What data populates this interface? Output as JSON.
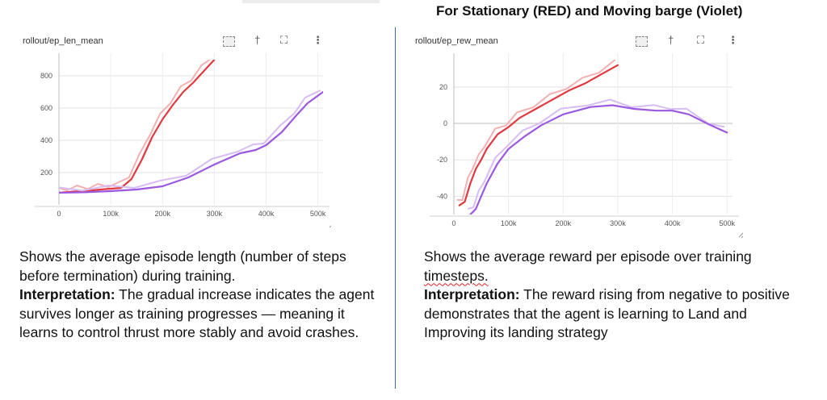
{
  "heading": "For Stationary (RED) and Moving barge (Violet)",
  "icons": {
    "fit": "fit-domain-icon",
    "pin": "pin-icon",
    "expand": "fullscreen-icon",
    "more": "more-vert-icon"
  },
  "colors": {
    "red": "#e0393f",
    "red_light": "#f2a6a6",
    "violet": "#9b59e0",
    "violet_light": "#ddc4f3"
  },
  "left_panel": {
    "title": "rollout/ep_len_mean",
    "description": "Shows the average episode length (number of steps before termination) during training.",
    "interp_label": "Interpretation:",
    "interp_text": " The gradual increase indicates the agent survives longer as training progresses — meaning it learns to control thrust more stably and avoid crashes."
  },
  "right_panel": {
    "title": "rollout/ep_rew_mean",
    "description_1": "Shows the average reward per episode over training ",
    "description_2": "timesteps.",
    "interp_label": "Interpretation:",
    "interp_text": " The reward rising from negative to positive demonstrates that the agent is learning to Land and Improving its landing strategy"
  },
  "chart_data": [
    {
      "type": "line",
      "title": "rollout/ep_len_mean",
      "xlim": [
        0,
        510000
      ],
      "ylim": [
        0,
        900
      ],
      "xticks": [
        0,
        100000,
        200000,
        300000,
        400000,
        500000
      ],
      "xtick_labels": [
        "0",
        "100k",
        "200k",
        "300k",
        "400k",
        "500k"
      ],
      "yticks": [
        200,
        400,
        600,
        800
      ],
      "ytick_labels": [
        "200",
        "400",
        "600",
        "800"
      ],
      "grid": true,
      "series": [
        {
          "color": "#e0393f",
          "x": [
            0,
            20000,
            40000,
            60000,
            80000,
            100000,
            120000,
            140000,
            160000,
            180000,
            200000,
            220000,
            240000,
            260000,
            280000,
            300000
          ],
          "y": [
            75,
            80,
            85,
            88,
            95,
            100,
            105,
            160,
            280,
            420,
            530,
            620,
            700,
            760,
            830,
            900
          ]
        },
        {
          "color": "#9b59e0",
          "x": [
            0,
            50000,
            100000,
            150000,
            200000,
            250000,
            300000,
            350000,
            380000,
            400000,
            430000,
            460000,
            480000,
            510000
          ],
          "y": [
            75,
            78,
            85,
            95,
            115,
            170,
            250,
            320,
            340,
            370,
            450,
            560,
            630,
            700
          ]
        }
      ]
    },
    {
      "type": "line",
      "title": "rollout/ep_rew_mean",
      "xlim": [
        0,
        510000
      ],
      "ylim": [
        -50,
        35
      ],
      "xticks": [
        0,
        100000,
        200000,
        300000,
        400000,
        500000
      ],
      "xtick_labels": [
        "0",
        "100k",
        "200k",
        "300k",
        "400k",
        "500k"
      ],
      "yticks": [
        -40,
        -20,
        0,
        20
      ],
      "ytick_labels": [
        "-40",
        "-20",
        "0",
        "20"
      ],
      "grid": true,
      "series": [
        {
          "color": "#e0393f",
          "x": [
            10000,
            20000,
            30000,
            40000,
            50000,
            60000,
            80000,
            100000,
            120000,
            150000,
            180000,
            210000,
            240000,
            270000,
            300000
          ],
          "y": [
            -45,
            -43,
            -33,
            -25,
            -20,
            -14,
            -6,
            -2,
            3,
            8,
            13,
            18,
            22,
            27,
            32
          ]
        },
        {
          "color": "#9b59e0",
          "x": [
            30000,
            40000,
            50000,
            60000,
            80000,
            100000,
            130000,
            160000,
            200000,
            250000,
            290000,
            330000,
            370000,
            400000,
            430000,
            470000,
            500000
          ],
          "y": [
            -50,
            -47,
            -40,
            -33,
            -22,
            -14,
            -7,
            -1,
            5,
            9,
            10,
            8,
            7,
            7,
            5,
            -1,
            -5
          ]
        }
      ]
    }
  ]
}
